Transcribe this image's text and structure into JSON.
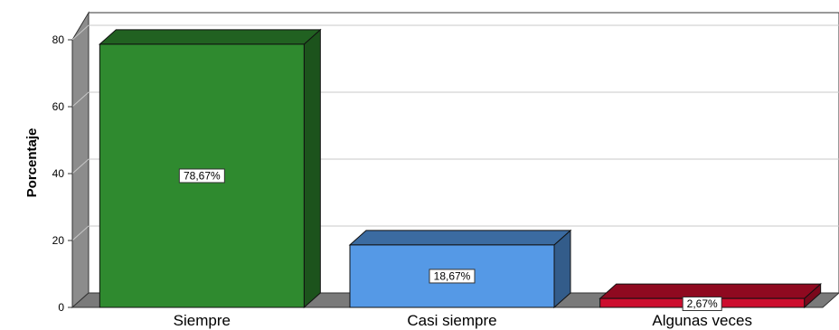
{
  "chart_data": {
    "type": "bar",
    "categories": [
      "Siempre",
      "Casi siempre",
      "Algunas veces"
    ],
    "values": [
      78.67,
      18.67,
      2.67
    ],
    "data_labels": [
      "78,67%",
      "18,67%",
      "2,67%"
    ],
    "bar_colors": [
      "#2f8a2f",
      "#5599e6",
      "#cc0d2e"
    ],
    "title": "",
    "xlabel": "",
    "ylabel": "Porcentaje",
    "ylim": [
      0,
      80
    ],
    "yticks": [
      0,
      20,
      40,
      60,
      80
    ],
    "grid": true,
    "style": "3d"
  }
}
